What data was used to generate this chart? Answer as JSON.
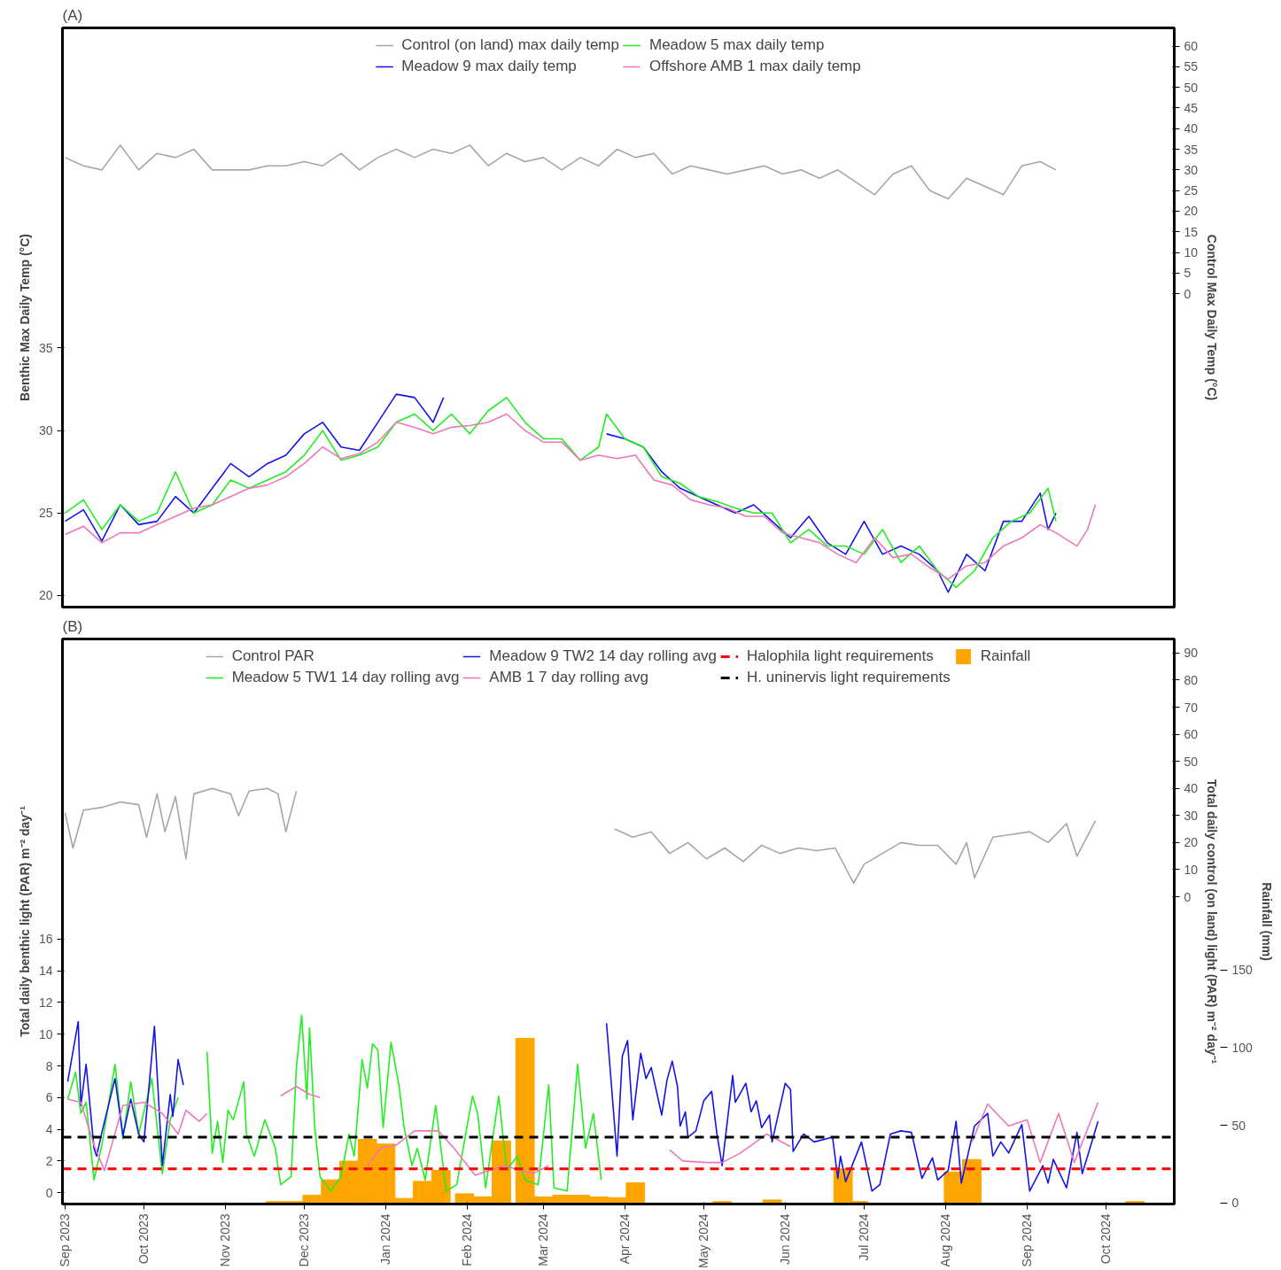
{
  "chart_data": [
    {
      "type": "line",
      "title": "(A)",
      "ylabel": "Benthic Max Daily Temp (°C)",
      "y2label": "Control Max Daily Temp (°C)",
      "xlim": [
        "2023-08-31",
        "2024-10-27"
      ],
      "ylim": [
        19.3,
        54.4
      ],
      "yticks": [
        20,
        25,
        30,
        35
      ],
      "y2lim": [
        -75.9,
        64.4
      ],
      "y2ticks": [
        0,
        5,
        10,
        15,
        20,
        25,
        30,
        35,
        40,
        45,
        50,
        55,
        60
      ],
      "tick_labels": "y",
      "legend": "top",
      "series": [
        {
          "name": "Control (on land) max daily temp",
          "color": "#a6a6a6",
          "axis": "y2",
          "x": [
            "2023-09-01",
            "2023-09-08",
            "2023-09-15",
            "2023-09-22",
            "2023-09-29",
            "2023-10-06",
            "2023-10-13",
            "2023-10-20",
            "2023-10-27",
            "2023-11-03",
            "2023-11-10",
            "2023-11-17",
            "2023-11-24",
            "2023-12-01",
            "2023-12-08",
            "2023-12-15",
            "2023-12-22",
            "2023-12-29",
            "2024-01-05",
            "2024-01-12",
            "2024-01-19",
            "2024-01-26",
            "2024-02-02",
            "2024-02-09",
            "2024-02-16",
            "2024-02-23",
            "2024-03-01",
            "2024-03-08",
            "2024-03-15",
            "2024-03-22",
            "2024-03-29",
            "2024-04-05",
            "2024-04-12",
            "2024-04-19",
            "2024-04-26",
            "2024-05-03",
            "2024-05-10",
            "2024-05-17",
            "2024-05-24",
            "2024-05-31",
            "2024-06-07",
            "2024-06-14",
            "2024-06-21",
            "2024-06-28",
            "2024-07-05",
            "2024-07-12",
            "2024-07-19",
            "2024-07-26",
            "2024-08-02",
            "2024-08-09",
            "2024-08-16",
            "2024-08-23",
            "2024-08-30",
            "2024-09-06",
            "2024-09-12"
          ],
          "values": [
            33,
            31,
            30,
            36,
            30,
            34,
            33,
            35,
            30,
            30,
            30,
            31,
            31,
            32,
            31,
            34,
            30,
            33,
            35,
            33,
            35,
            34,
            36,
            31,
            34,
            32,
            33,
            30,
            33,
            31,
            35,
            33,
            34,
            29,
            31,
            30,
            29,
            30,
            31,
            29,
            30,
            28,
            30,
            27,
            24,
            29,
            31,
            25,
            23,
            28,
            26,
            24,
            31,
            32,
            30
          ]
        },
        {
          "name": "Meadow 9 max daily temp",
          "color": "#1414e6",
          "x": [
            "2023-09-01",
            "2023-09-08",
            "2023-09-15",
            "2023-09-22",
            "2023-09-29",
            "2023-10-06",
            "2023-10-13",
            "2023-10-20",
            "2023-10-27",
            "2023-11-03",
            "2023-11-10",
            "2023-11-17",
            "2023-11-24",
            "2023-12-01",
            "2023-12-08",
            "2023-12-15",
            "2023-12-22",
            "2023-12-29",
            "2024-01-05",
            "2024-01-12",
            "2024-01-19",
            "2024-01-23",
            "2024-02-20",
            "2024-03-25",
            "2024-04-01",
            "2024-04-08",
            "2024-04-15",
            "2024-04-22",
            "2024-04-29",
            "2024-05-06",
            "2024-05-13",
            "2024-05-20",
            "2024-05-27",
            "2024-06-03",
            "2024-06-10",
            "2024-06-17",
            "2024-06-24",
            "2024-07-01",
            "2024-07-08",
            "2024-07-15",
            "2024-07-22",
            "2024-07-29",
            "2024-08-02",
            "2024-08-09",
            "2024-08-16",
            "2024-08-23",
            "2024-08-30",
            "2024-09-06",
            "2024-09-09",
            "2024-09-12"
          ],
          "values": [
            24.5,
            25.2,
            23.3,
            25.5,
            24.3,
            24.5,
            26.0,
            25.0,
            26.5,
            28.0,
            27.2,
            28.0,
            28.5,
            29.8,
            30.5,
            29.0,
            28.8,
            30.5,
            32.2,
            32.0,
            30.5,
            32.0,
            null,
            29.8,
            29.5,
            29.0,
            27.5,
            26.5,
            26.0,
            25.5,
            25.0,
            25.5,
            24.5,
            23.5,
            24.8,
            23.2,
            22.5,
            24.5,
            22.5,
            23.0,
            22.5,
            21.5,
            20.2,
            22.5,
            21.5,
            24.5,
            24.5,
            26.2,
            24.0,
            25.0
          ]
        },
        {
          "name": "Meadow 5 max daily temp",
          "color": "#22ee22",
          "x": [
            "2023-09-01",
            "2023-09-08",
            "2023-09-15",
            "2023-09-22",
            "2023-09-29",
            "2023-10-06",
            "2023-10-13",
            "2023-10-20",
            "2023-10-27",
            "2023-11-03",
            "2023-11-10",
            "2023-11-17",
            "2023-11-24",
            "2023-12-01",
            "2023-12-08",
            "2023-12-15",
            "2023-12-22",
            "2023-12-29",
            "2024-01-05",
            "2024-01-12",
            "2024-01-19",
            "2024-01-26",
            "2024-02-02",
            "2024-02-09",
            "2024-02-16",
            "2024-02-23",
            "2024-03-01",
            "2024-03-08",
            "2024-03-15",
            "2024-03-22",
            "2024-03-25",
            "2024-04-01",
            "2024-04-08",
            "2024-04-15",
            "2024-04-22",
            "2024-04-29",
            "2024-05-06",
            "2024-05-13",
            "2024-05-20",
            "2024-05-27",
            "2024-06-03",
            "2024-06-10",
            "2024-06-17",
            "2024-06-24",
            "2024-07-01",
            "2024-07-08",
            "2024-07-15",
            "2024-07-22",
            "2024-07-29",
            "2024-08-05",
            "2024-08-12",
            "2024-08-19",
            "2024-08-26",
            "2024-09-02",
            "2024-09-09",
            "2024-09-12"
          ],
          "values": [
            25.0,
            25.8,
            24.0,
            25.5,
            24.5,
            25.0,
            27.5,
            25.0,
            25.5,
            27,
            26.5,
            27,
            27.5,
            28.5,
            30.0,
            28.2,
            28.5,
            29.0,
            30.5,
            31.0,
            30.0,
            31.0,
            29.8,
            31.2,
            32.0,
            30.5,
            29.5,
            29.5,
            28.2,
            29.0,
            31.0,
            29.5,
            29.0,
            27.2,
            26.8,
            26.0,
            25.7,
            25.3,
            25.0,
            25.0,
            23.2,
            24.0,
            23.0,
            23.0,
            22.5,
            24.0,
            22.0,
            23.0,
            21.5,
            20.5,
            21.5,
            23.5,
            24.5,
            25.0,
            26.5,
            24.5
          ]
        },
        {
          "name": "Offshore AMB 1 max daily temp",
          "color": "#ee77bb",
          "x": [
            "2023-09-01",
            "2023-09-08",
            "2023-09-15",
            "2023-09-22",
            "2023-09-29",
            "2023-10-06",
            "2023-10-13",
            "2023-10-20",
            "2023-10-27",
            "2023-11-03",
            "2023-11-10",
            "2023-11-17",
            "2023-11-24",
            "2023-12-01",
            "2023-12-08",
            "2023-12-15",
            "2023-12-22",
            "2023-12-29",
            "2024-01-05",
            "2024-01-12",
            "2024-01-19",
            "2024-01-26",
            "2024-02-02",
            "2024-02-09",
            "2024-02-16",
            "2024-02-23",
            "2024-03-01",
            "2024-03-08",
            "2024-03-15",
            "2024-03-22",
            "2024-03-29",
            "2024-04-05",
            "2024-04-12",
            "2024-04-19",
            "2024-04-26",
            "2024-05-03",
            "2024-05-10",
            "2024-05-17",
            "2024-05-24",
            "2024-05-31",
            "2024-06-07",
            "2024-06-14",
            "2024-06-21",
            "2024-06-28",
            "2024-07-05",
            "2024-07-12",
            "2024-07-19",
            "2024-07-26",
            "2024-08-02",
            "2024-08-09",
            "2024-08-16",
            "2024-08-23",
            "2024-08-30",
            "2024-09-06",
            "2024-09-12",
            "2024-09-20",
            "2024-09-24",
            "2024-09-27"
          ],
          "values": [
            23.7,
            24.2,
            23.2,
            23.8,
            23.8,
            24.3,
            24.8,
            25.3,
            25.5,
            26.0,
            26.5,
            26.7,
            27.2,
            28.0,
            29.0,
            28.3,
            28.6,
            29.3,
            30.5,
            30.2,
            29.8,
            30.2,
            30.3,
            30.5,
            31.0,
            30.0,
            29.3,
            29.3,
            28.2,
            28.5,
            28.3,
            28.5,
            27.0,
            26.7,
            25.8,
            25.5,
            25.3,
            24.8,
            24.8,
            23.8,
            23.5,
            23.2,
            22.5,
            22.0,
            23.5,
            22.3,
            22.5,
            21.7,
            21.0,
            21.8,
            22.0,
            23.0,
            23.5,
            24.3,
            23.8,
            23.0,
            24.0,
            25.5
          ]
        }
      ]
    },
    {
      "type": "line",
      "title": "(B)",
      "ylabel": "Total daily benthic light (PAR) m⁻² day⁻¹",
      "y2label": "Total daily control (on land) light (PAR) m⁻² day⁻¹",
      "y3label": "Rainfall (mm)",
      "xlim": [
        "2023-08-31",
        "2024-10-27"
      ],
      "xticks": [
        {
          "value": "2023-09-01",
          "label": "Sep 2023"
        },
        {
          "value": "2023-10-01",
          "label": "Oct 2023"
        },
        {
          "value": "2023-11-01",
          "label": "Nov 2023"
        },
        {
          "value": "2023-12-01",
          "label": "Dec 2023"
        },
        {
          "value": "2024-01-01",
          "label": "Jan 2024"
        },
        {
          "value": "2024-02-01",
          "label": "Feb 2024"
        },
        {
          "value": "2024-03-01",
          "label": "Mar 2024"
        },
        {
          "value": "2024-04-01",
          "label": "Apr 2024"
        },
        {
          "value": "2024-05-01",
          "label": "May 2024"
        },
        {
          "value": "2024-06-01",
          "label": "Jun 2024"
        },
        {
          "value": "2024-07-01",
          "label": "Jul 2024"
        },
        {
          "value": "2024-08-01",
          "label": "Aug 2024"
        },
        {
          "value": "2024-09-01",
          "label": "Sep 2024"
        },
        {
          "value": "2024-10-01",
          "label": "Oct 2024"
        }
      ],
      "ylim": [
        -0.72,
        34.95
      ],
      "yticks": [
        0,
        2,
        4,
        6,
        8,
        10,
        12,
        14,
        16
      ],
      "y2lim": [
        -113.5,
        95.2
      ],
      "y2ticks": [
        0,
        10,
        20,
        30,
        40,
        50,
        60,
        70,
        80,
        90
      ],
      "y3lim": [
        -0.6,
        363
      ],
      "y3ticks": [
        0,
        50,
        100,
        150
      ],
      "legend": "top",
      "series": [
        {
          "name": "Rainfall",
          "type": "bar",
          "axis": "y3",
          "color": "#ffa500",
          "x": [
            "2023-11-20",
            "2023-11-27",
            "2023-12-04",
            "2023-12-11",
            "2023-12-18",
            "2023-12-25",
            "2024-01-01",
            "2024-01-08",
            "2024-01-15",
            "2024-01-22",
            "2024-01-31",
            "2024-02-07",
            "2024-02-14",
            "2024-02-23",
            "2024-03-01",
            "2024-03-08",
            "2024-03-15",
            "2024-03-22",
            "2024-03-29",
            "2024-04-05",
            "2024-05-08",
            "2024-05-27",
            "2024-06-23",
            "2024-06-29",
            "2024-08-04",
            "2024-08-11",
            "2024-10-12"
          ],
          "values": [
            1,
            1,
            5,
            15,
            27,
            41,
            38,
            3,
            14,
            21,
            6,
            4,
            40,
            106,
            4,
            5,
            5,
            4,
            3.5,
            13,
            1,
            2,
            22,
            1,
            20,
            28,
            1
          ]
        },
        {
          "name": "Control PAR",
          "color": "#a6a6a6",
          "axis": "y2",
          "x": [
            "2023-09-01",
            "2023-09-04",
            "2023-09-08",
            "2023-09-15",
            "2023-09-22",
            "2023-09-29",
            "2023-10-02",
            "2023-10-06",
            "2023-10-09",
            "2023-10-13",
            "2023-10-17",
            "2023-10-20",
            "2023-10-27",
            "2023-11-03",
            "2023-11-06",
            "2023-11-10",
            "2023-11-17",
            "2023-11-21",
            "2023-11-24",
            "2023-11-28",
            "2024-01-15",
            "2024-03-28",
            "2024-04-04",
            "2024-04-11",
            "2024-04-18",
            "2024-04-25",
            "2024-05-02",
            "2024-05-09",
            "2024-05-16",
            "2024-05-23",
            "2024-05-30",
            "2024-06-06",
            "2024-06-13",
            "2024-06-20",
            "2024-06-27",
            "2024-07-01",
            "2024-07-08",
            "2024-07-15",
            "2024-07-22",
            "2024-07-29",
            "2024-08-05",
            "2024-08-09",
            "2024-08-12",
            "2024-08-19",
            "2024-08-26",
            "2024-09-02",
            "2024-09-09",
            "2024-09-16",
            "2024-09-20",
            "2024-09-27"
          ],
          "values": [
            31,
            18,
            32,
            33,
            35,
            34,
            22,
            38,
            24,
            37,
            14,
            38,
            40,
            38,
            30,
            39,
            40,
            38,
            24,
            39,
            null,
            25,
            22,
            24,
            16,
            20,
            14,
            18,
            13,
            19,
            16,
            18,
            17,
            18,
            5,
            12,
            16,
            20,
            19,
            19,
            12,
            20,
            7,
            22,
            23,
            24,
            20,
            27,
            15,
            28
          ]
        },
        {
          "name": "Meadow 5 TW1 14 day rolling avg",
          "color": "#22ee22",
          "x": [
            "2023-09-02",
            "2023-09-05",
            "2023-09-07",
            "2023-09-09",
            "2023-09-12",
            "2023-09-15",
            "2023-09-20",
            "2023-09-23",
            "2023-09-26",
            "2023-09-29",
            "2023-10-04",
            "2023-10-08",
            "2023-10-11",
            "2023-10-14",
            "2023-10-20",
            "2023-10-25",
            "2023-10-27",
            "2023-10-29",
            "2023-10-31",
            "2023-11-02",
            "2023-11-04",
            "2023-11-08",
            "2023-11-09",
            "2023-11-12",
            "2023-11-16",
            "2023-11-20",
            "2023-11-22",
            "2023-11-26",
            "2023-11-28",
            "2023-11-30",
            "2023-12-02",
            "2023-12-03",
            "2023-12-05",
            "2023-12-07",
            "2023-12-11",
            "2023-12-15",
            "2023-12-18",
            "2023-12-20",
            "2023-12-23",
            "2023-12-25",
            "2023-12-27",
            "2023-12-29",
            "2023-12-31",
            "2024-01-03",
            "2024-01-06",
            "2024-01-08",
            "2024-01-11",
            "2024-01-13",
            "2024-01-16",
            "2024-01-20",
            "2024-01-24",
            "2024-01-28",
            "2024-02-03",
            "2024-02-05",
            "2024-02-08",
            "2024-02-13",
            "2024-02-16",
            "2024-02-20",
            "2024-02-23",
            "2024-02-28",
            "2024-03-03",
            "2024-03-05",
            "2024-03-10",
            "2024-03-14",
            "2024-03-17",
            "2024-03-20",
            "2024-03-23"
          ],
          "values": [
            5.9,
            7.6,
            5.0,
            5.7,
            0.8,
            3.0,
            8.1,
            3.4,
            7.0,
            3.7,
            7.2,
            1.2,
            4.6,
            6.0,
            null,
            8.9,
            2.5,
            4.5,
            1.9,
            5.2,
            4.6,
            7.0,
            3.7,
            2.3,
            4.6,
            2.8,
            0.5,
            1.0,
            7.9,
            11.2,
            5.9,
            10.4,
            4.1,
            1.0,
            0.1,
            1.0,
            3.7,
            2.3,
            8.4,
            6.6,
            9.4,
            9.0,
            4.1,
            9.5,
            6.8,
            4.1,
            1.7,
            2.8,
            0.8,
            5.5,
            0.1,
            0.5,
            6.1,
            5.0,
            0.3,
            6.1,
            1.4,
            2.3,
            0.8,
            0.5,
            6.8,
            0.3,
            0.1,
            8.1,
            2.8,
            5.0,
            0.8
          ]
        },
        {
          "name": "Meadow 9 TW2 14 day rolling avg",
          "color": "#1414e6",
          "x": [
            "2023-09-02",
            "2023-09-06",
            "2023-09-07",
            "2023-09-09",
            "2023-09-12",
            "2023-09-13",
            "2023-09-15",
            "2023-09-20",
            "2023-09-23",
            "2023-09-26",
            "2023-09-29",
            "2023-10-01",
            "2023-10-05",
            "2023-10-08",
            "2023-10-11",
            "2023-10-12",
            "2023-10-14",
            "2023-10-16",
            "2023-12-01",
            "2024-03-25",
            "2024-03-29",
            "2024-03-31",
            "2024-04-02",
            "2024-04-04",
            "2024-04-07",
            "2024-04-09",
            "2024-04-11",
            "2024-04-15",
            "2024-04-17",
            "2024-04-19",
            "2024-04-21",
            "2024-04-22",
            "2024-04-24",
            "2024-04-25",
            "2024-04-28",
            "2024-05-01",
            "2024-05-04",
            "2024-05-06",
            "2024-05-08",
            "2024-05-12",
            "2024-05-13",
            "2024-05-17",
            "2024-05-19",
            "2024-05-21",
            "2024-05-23",
            "2024-05-26",
            "2024-05-27",
            "2024-06-01",
            "2024-06-03",
            "2024-06-04",
            "2024-06-08",
            "2024-06-12",
            "2024-06-19",
            "2024-06-21",
            "2024-06-22",
            "2024-06-24",
            "2024-06-30",
            "2024-07-04",
            "2024-07-07",
            "2024-07-11",
            "2024-07-15",
            "2024-07-19",
            "2024-07-23",
            "2024-07-27",
            "2024-07-29",
            "2024-08-02",
            "2024-08-05",
            "2024-08-07",
            "2024-08-12",
            "2024-08-17",
            "2024-08-19",
            "2024-08-22",
            "2024-08-25",
            "2024-08-30",
            "2024-09-02",
            "2024-09-07",
            "2024-09-09",
            "2024-09-11",
            "2024-09-16",
            "2024-09-20",
            "2024-09-22",
            "2024-09-28"
          ],
          "values": [
            7.0,
            10.8,
            5.5,
            8.1,
            2.8,
            2.3,
            3.8,
            7.2,
            3.6,
            5.9,
            3.7,
            3.2,
            10.5,
            1.7,
            6.2,
            4.8,
            8.4,
            6.8,
            null,
            10.7,
            2.3,
            8.6,
            9.6,
            4.6,
            8.8,
            7.2,
            7.9,
            4.9,
            7.1,
            8.3,
            6.7,
            4.2,
            5.1,
            3.5,
            3.9,
            5.8,
            6.4,
            3.7,
            1.7,
            7.4,
            5.7,
            6.9,
            5.1,
            5.8,
            4.1,
            4.9,
            3.2,
            6.9,
            6.5,
            2.6,
            3.7,
            3.2,
            3.5,
            0.9,
            2.3,
            0.7,
            3.2,
            0.1,
            0.5,
            3.7,
            3.9,
            3.8,
            0.9,
            2.2,
            0.8,
            1.4,
            4.5,
            0.6,
            4.2,
            5.0,
            2.3,
            3.2,
            2.5,
            4.3,
            0.1,
            1.7,
            0.6,
            2.1,
            0.3,
            3.8,
            1.2,
            4.5
          ]
        },
        {
          "name": "AMB 1 7 day rolling avg",
          "color": "#ee77bb",
          "x": [
            "2023-09-02",
            "2023-09-07",
            "2023-09-12",
            "2023-09-16",
            "2023-09-23",
            "2023-10-01",
            "2023-10-08",
            "2023-10-14",
            "2023-10-17",
            "2023-10-22",
            "2023-10-25",
            "2023-11-01",
            "2023-11-22",
            "2023-11-28",
            "2023-12-03",
            "2023-12-07",
            "2023-12-10",
            "2023-12-25",
            "2023-12-30",
            "2024-01-05",
            "2024-01-12",
            "2024-01-21",
            "2024-01-27",
            "2024-02-04",
            "2024-02-15",
            "2024-02-26",
            "2024-03-03",
            "2024-03-20",
            "2024-04-18",
            "2024-04-23",
            "2024-05-02",
            "2024-05-08",
            "2024-05-15",
            "2024-05-25",
            "2024-06-03",
            "2024-07-01",
            "2024-08-11",
            "2024-08-17",
            "2024-08-25",
            "2024-09-01",
            "2024-09-06",
            "2024-09-13",
            "2024-09-19",
            "2024-09-28"
          ],
          "values": [
            5.9,
            5.7,
            3.0,
            1.4,
            5.5,
            5.7,
            5.0,
            3.7,
            5.2,
            4.5,
            5.0,
            null,
            6.1,
            6.7,
            6.2,
            6.0,
            null,
            1.7,
            2.8,
            3.0,
            3.9,
            3.9,
            2.8,
            1.1,
            1.7,
            1.2,
            1.7,
            null,
            2.7,
            2.0,
            1.9,
            1.9,
            2.5,
            3.7,
            2.9,
            null,
            3.2,
            5.6,
            4.2,
            4.6,
            1.9,
            5.0,
            1.9,
            5.7
          ]
        }
      ],
      "ref_lines": [
        {
          "axis": "y",
          "value": 1.5,
          "label": "Halophila light requirements",
          "color": "#ff0000",
          "line_style": "dashed"
        },
        {
          "axis": "y",
          "value": 3.5,
          "label": "H. uninervis light requirements",
          "color": "#000000",
          "line_style": "dashed"
        }
      ]
    }
  ]
}
